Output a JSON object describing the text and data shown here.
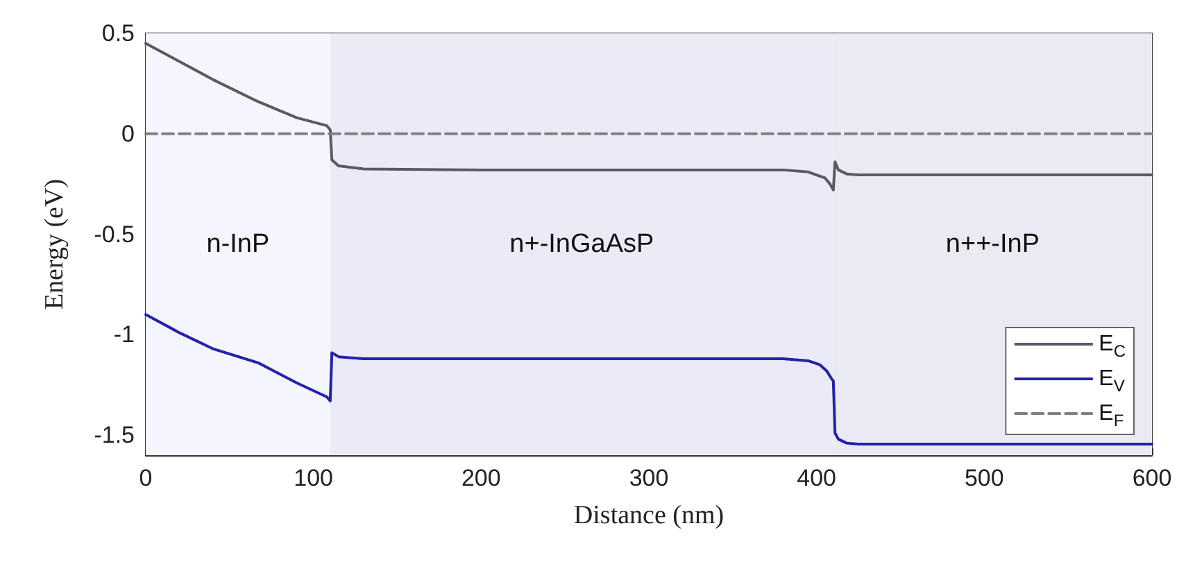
{
  "chart_data": {
    "type": "line",
    "xlabel": "Distance (nm)",
    "ylabel": "Energy (eV)",
    "xlim": [
      0,
      600
    ],
    "ylim": [
      -1.6,
      0.5
    ],
    "xticks": [
      0,
      100,
      200,
      300,
      400,
      500,
      600
    ],
    "yticks": [
      {
        "value": 0.5,
        "label": "0.5"
      },
      0,
      {
        "value": -0.5,
        "label": "-0.5"
      },
      -1,
      {
        "value": -1.5,
        "label": "-1.5"
      }
    ],
    "grid": false,
    "legend": "bottom right",
    "line_style": "solid",
    "marker": "none",
    "bands": [
      {
        "axis": "x",
        "from": 0,
        "to": 110,
        "label": "n-InP",
        "color": "#f5f5fd"
      },
      {
        "axis": "x",
        "from": 110,
        "to": 410,
        "label": "n+-InGaAsP",
        "color": "#ebebf8"
      },
      {
        "axis": "x",
        "from": 410,
        "to": 600,
        "label": "n++-InP",
        "color": "#eaeaf2"
      }
    ],
    "series": [
      {
        "name": "E$_{C}$",
        "color": "#5a5a62",
        "x": [
          0,
          20,
          40,
          67,
          90,
          108,
          110,
          111,
          115,
          130,
          200,
          300,
          380,
          395,
          405,
          408,
          410,
          411,
          413,
          418,
          425,
          500,
          600
        ],
        "values": [
          0.45,
          0.36,
          0.27,
          0.16,
          0.08,
          0.04,
          0.02,
          -0.13,
          -0.16,
          -0.175,
          -0.18,
          -0.18,
          -0.18,
          -0.19,
          -0.22,
          -0.25,
          -0.28,
          -0.14,
          -0.18,
          -0.2,
          -0.205,
          -0.205,
          -0.205
        ]
      },
      {
        "name": "E$_{V}$",
        "color": "#2222aa",
        "x": [
          0,
          20,
          40,
          67,
          90,
          108,
          110,
          111,
          115,
          130,
          200,
          300,
          380,
          395,
          402,
          406,
          409,
          410,
          411,
          413,
          418,
          425,
          500,
          600
        ],
        "values": [
          -0.9,
          -0.99,
          -1.07,
          -1.14,
          -1.24,
          -1.31,
          -1.33,
          -1.09,
          -1.11,
          -1.12,
          -1.12,
          -1.12,
          -1.12,
          -1.13,
          -1.15,
          -1.18,
          -1.22,
          -1.23,
          -1.49,
          -1.52,
          -1.54,
          -1.545,
          -1.545,
          -1.545
        ]
      },
      {
        "name": "E$_{F}$",
        "color": "#808080",
        "line_style": "dashed",
        "x": [
          0,
          600
        ],
        "values": [
          0,
          0
        ]
      }
    ]
  }
}
